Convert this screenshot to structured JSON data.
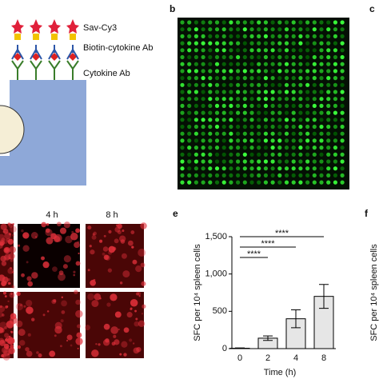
{
  "panel_labels": {
    "b": "b",
    "c": "c",
    "e": "e",
    "f": "f"
  },
  "diagram": {
    "labels": [
      "Sav-Cy3",
      "Biotin-cytokine Ab",
      "Cytokine Ab"
    ]
  },
  "images": {
    "time_labels": [
      "4 h",
      "8 h"
    ]
  },
  "chart_data": {
    "type": "bar",
    "y_label": "SFC per 10⁴ spleen cells",
    "x_label": "Time (h)",
    "categories": [
      "0",
      "2",
      "4",
      "8"
    ],
    "values": [
      5,
      140,
      400,
      700
    ],
    "errors": [
      5,
      30,
      120,
      160
    ],
    "ylim": [
      0,
      1500
    ],
    "yticks": [
      0,
      500,
      {
        "value": 1000,
        "label": "1,000"
      },
      {
        "value": 1500,
        "label": "1,500"
      }
    ],
    "annotations": [
      "****",
      "****",
      "****"
    ]
  },
  "panel_f": {
    "y_label": "SFC per 10⁴ spleen cells"
  }
}
